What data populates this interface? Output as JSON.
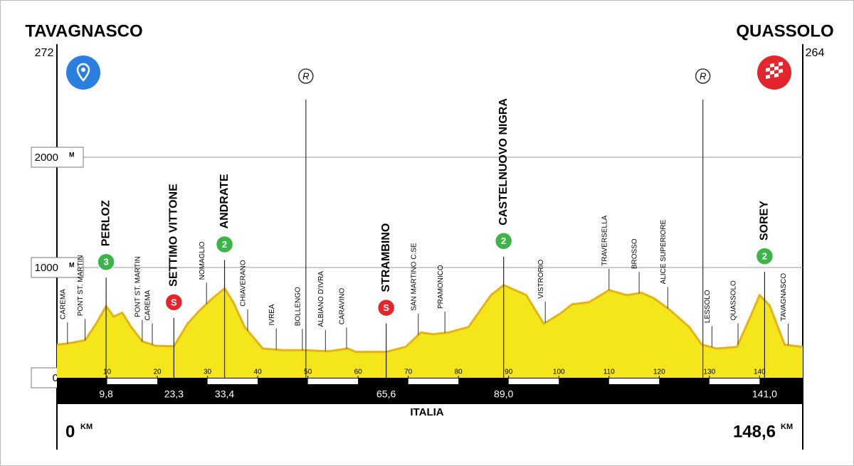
{
  "chart_data": {
    "type": "area",
    "start": "TAVAGNASCO",
    "start_elevation": 272,
    "finish": "QUASSOLO",
    "finish_elevation": 264,
    "country": "ITALIA",
    "km_unit": "KM",
    "y_unit": "M",
    "start_km": 0,
    "total_km": {
      "value": 148.6,
      "label": "148,6"
    },
    "x": [
      0,
      2.1,
      5.6,
      7.8,
      9.8,
      11.3,
      13,
      14.8,
      17,
      19.7,
      23.3,
      26,
      28.2,
      31,
      33.4,
      35.2,
      37.4,
      41,
      45,
      49.6,
      54,
      58,
      59.5,
      65.6,
      69.5,
      72.5,
      75,
      78,
      82,
      86.5,
      89,
      93.5,
      97,
      100.5,
      102.6,
      106,
      110,
      113.5,
      116.5,
      119,
      122,
      126,
      128.5,
      131.5,
      135.5,
      138.5,
      140,
      142,
      145,
      148.6
    ],
    "series": [
      {
        "color": "#f5e51b",
        "line_color": "#e2b31c",
        "values": [
          300,
          310,
          340,
          490,
          650,
          555,
          590,
          460,
          330,
          290,
          285,
          490,
          600,
          720,
          810,
          680,
          460,
          265,
          250,
          250,
          240,
          265,
          235,
          235,
          280,
          410,
          395,
          410,
          460,
          750,
          840,
          750,
          490,
          590,
          665,
          685,
          795,
          750,
          770,
          720,
          620,
          460,
          300,
          265,
          280,
          590,
          750,
          655,
          300,
          280
        ]
      }
    ],
    "xlim": [
      0,
      148.6
    ],
    "ylim": [
      0,
      3000
    ],
    "xticks": [
      10,
      20,
      30,
      40,
      50,
      60,
      70,
      80,
      90,
      100,
      110,
      120,
      130,
      140
    ],
    "yticks": [
      0,
      1000,
      2000
    ],
    "grid": true,
    "places": [
      {
        "name": "CAREMA",
        "km": 2.1
      },
      {
        "name": "PONT ST. MARTIN",
        "km": 5.6
      },
      {
        "name": "PONT ST. MARTIN",
        "km": 17
      },
      {
        "name": "CAREMA",
        "km": 19
      },
      {
        "name": "NOMAGLIO",
        "km": 29.8
      },
      {
        "name": "CHIAVERANO",
        "km": 38
      },
      {
        "name": "IVREA",
        "km": 43.7
      },
      {
        "name": "BOLLENGO",
        "km": 48.9
      },
      {
        "name": "ALBIANO D'IVRA",
        "km": 53.5
      },
      {
        "name": "CARAVINO",
        "km": 57.7
      },
      {
        "name": "SAN MARTINO C.SE",
        "km": 72
      },
      {
        "name": "PRAMONICO",
        "km": 77.3
      },
      {
        "name": "VISTRORIO",
        "km": 97.3
      },
      {
        "name": "TRAVERSELLA",
        "km": 110
      },
      {
        "name": "BROSSO",
        "km": 116
      },
      {
        "name": "ALICE SUPERIORE",
        "km": 121.7
      },
      {
        "name": "LESSOLO",
        "km": 130.5
      },
      {
        "name": "QUASSOLO",
        "km": 135.7
      },
      {
        "name": "TAVAGNASCO",
        "km": 145.7
      }
    ],
    "key_points": [
      {
        "name": "PERLOZ",
        "km": {
          "value": 9.8,
          "label": "9,8"
        },
        "badge": "3",
        "badge_color": "#3cb44a"
      },
      {
        "name": "SETTIMO VITTONE",
        "km": {
          "value": 23.3,
          "label": "23,3"
        },
        "badge": "S",
        "badge_color": "#e2262b"
      },
      {
        "name": "ANDRATE",
        "km": {
          "value": 33.4,
          "label": "33,4"
        },
        "badge": "2",
        "badge_color": "#3cb44a"
      },
      {
        "name": "STRAMBINO",
        "km": {
          "value": 65.6,
          "label": "65,6"
        },
        "badge": "S",
        "badge_color": "#e2262b"
      },
      {
        "name": "CASTELNUOVO NIGRA",
        "km": {
          "value": 89.0,
          "label": "89,0"
        },
        "badge": "2",
        "badge_color": "#3cb44a"
      },
      {
        "name": "SOREY",
        "km": {
          "value": 141.0,
          "label": "141,0"
        },
        "badge": "2",
        "badge_color": "#3cb44a"
      }
    ],
    "feed_zones": [
      {
        "km": 49.6,
        "label": "R"
      },
      {
        "km": 128.7,
        "label": "R"
      }
    ]
  }
}
